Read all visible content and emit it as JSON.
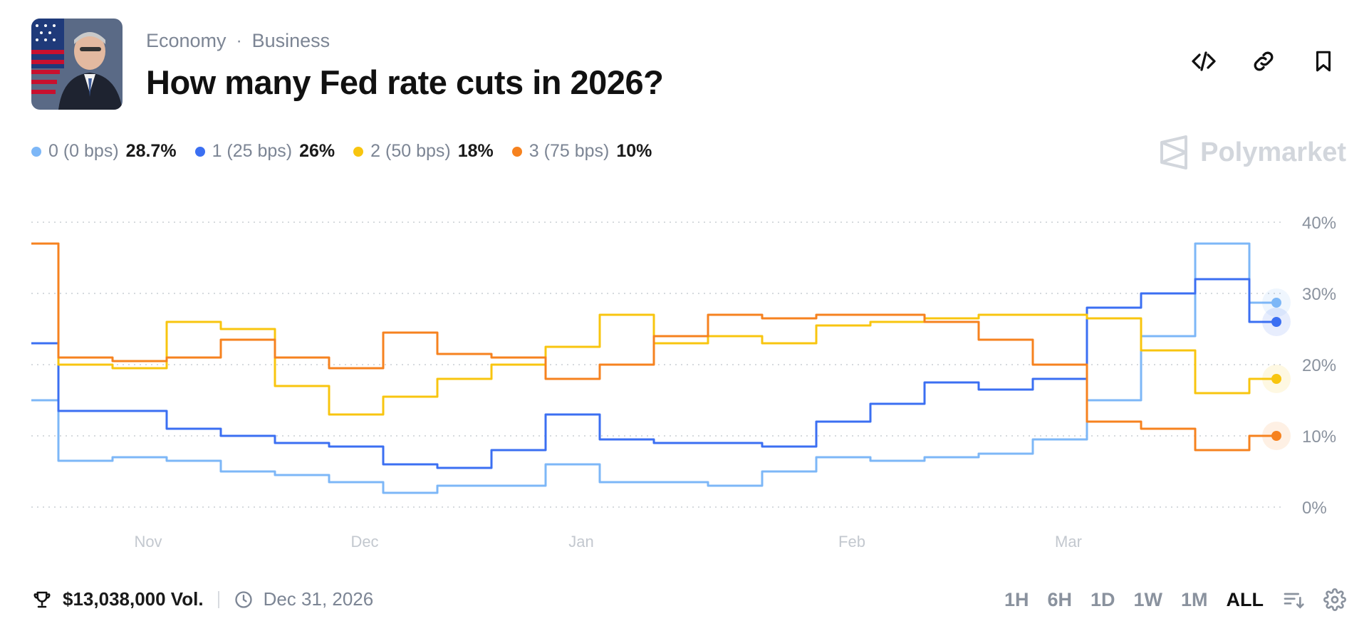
{
  "header": {
    "breadcrumbs": [
      "Economy",
      "Business"
    ],
    "title": "How many Fed rate cuts in 2026?"
  },
  "actions": [
    "code-icon",
    "link-icon",
    "bookmark-icon"
  ],
  "brand": {
    "name": "Polymarket"
  },
  "legend": [
    {
      "name": "0 (0 bps)",
      "value": "28.7%",
      "color": "#7db7f7"
    },
    {
      "name": "1 (25 bps)",
      "value": "26%",
      "color": "#3b6ff2"
    },
    {
      "name": "2 (50 bps)",
      "value": "18%",
      "color": "#f8c50f"
    },
    {
      "name": "3 (75 bps)",
      "value": "10%",
      "color": "#f6821f"
    }
  ],
  "footer": {
    "volume": "$13,038,000 Vol.",
    "end_date": "Dec 31, 2026",
    "ranges": [
      "1H",
      "6H",
      "1D",
      "1W",
      "1M",
      "ALL"
    ],
    "active_range": "ALL"
  },
  "chart_data": {
    "type": "line",
    "x_tick_labels": [
      "Nov",
      "Dec",
      "Jan",
      "Feb",
      "Mar"
    ],
    "y_tick_labels": [
      "0%",
      "10%",
      "20%",
      "30%",
      "40%"
    ],
    "ylim": [
      0,
      40
    ],
    "grid": "horizontal dotted",
    "x": [
      "Oct 20",
      "Oct 25",
      "Nov 1",
      "Nov 8",
      "Nov 15",
      "Nov 22",
      "Nov 29",
      "Dec 6",
      "Dec 13",
      "Dec 20",
      "Dec 27",
      "Jan 3",
      "Jan 10",
      "Jan 17",
      "Jan 24",
      "Jan 31",
      "Feb 7",
      "Feb 14",
      "Feb 21",
      "Feb 28",
      "Mar 5",
      "Mar 10",
      "Mar 14",
      "Mar 18"
    ],
    "series": [
      {
        "name": "0 (0 bps)",
        "color": "#7db7f7",
        "values": [
          15,
          6.5,
          7,
          6.5,
          5,
          4.5,
          3.5,
          2,
          3,
          3,
          6,
          3.5,
          3.5,
          3,
          5,
          7,
          6.5,
          7,
          7.5,
          9.5,
          15,
          24,
          37,
          28.7
        ]
      },
      {
        "name": "1 (25 bps)",
        "color": "#3b6ff2",
        "values": [
          23,
          13.5,
          13.5,
          11,
          10,
          9,
          8.5,
          6,
          5.5,
          8,
          13,
          9.5,
          9,
          9,
          8.5,
          12,
          14.5,
          17.5,
          16.5,
          18,
          28,
          30,
          32,
          26
        ]
      },
      {
        "name": "2 (50 bps)",
        "color": "#f8c50f",
        "values": [
          37,
          20,
          19.5,
          26,
          25,
          17,
          13,
          15.5,
          18,
          20,
          22.5,
          27,
          23,
          24,
          23,
          25.5,
          26,
          26.5,
          27,
          27,
          26.5,
          22,
          16,
          18
        ]
      },
      {
        "name": "3 (75 bps)",
        "color": "#f6821f",
        "values": [
          37,
          21,
          20.5,
          21,
          23.5,
          21,
          19.5,
          24.5,
          21.5,
          21,
          18,
          20,
          24,
          27,
          26.5,
          27,
          27,
          26,
          23.5,
          20,
          12,
          11,
          8,
          10
        ]
      }
    ]
  }
}
